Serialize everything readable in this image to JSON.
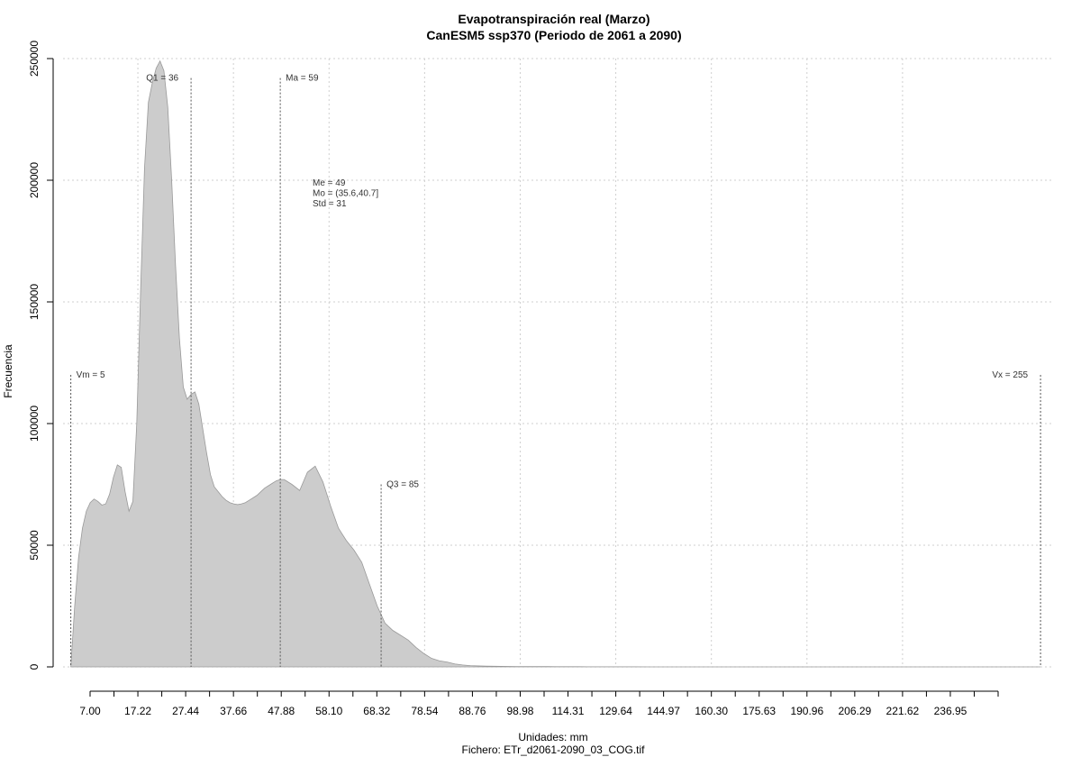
{
  "chart_data": {
    "type": "area",
    "title": "Evapotranspiración real (Marzo)",
    "subtitle": "CanESM5 ssp370 (Periodo de 2061 a 2090)",
    "xlabel": "Unidades: mm",
    "ylabel": "Frecuencia",
    "footer": "Fichero: ETr_d2061-2090_03_COG.tif",
    "xlim": [
      3,
      258
    ],
    "ylim": [
      0,
      250000
    ],
    "y_ticks": [
      0,
      50000,
      100000,
      150000,
      200000,
      250000
    ],
    "y_tick_labels": [
      "0",
      "50000",
      "100000",
      "150000",
      "200000",
      "250000"
    ],
    "x_tick_labels": [
      "7.00",
      "17.22",
      "27.44",
      "37.66",
      "47.88",
      "58.10",
      "68.32",
      "78.54",
      "88.76",
      "98.98",
      "114.31",
      "129.64",
      "144.97",
      "160.30",
      "175.63",
      "190.96",
      "206.29",
      "221.62",
      "236.95"
    ],
    "grid": true,
    "fill_color": "#cccccc",
    "series": [
      {
        "x": [
          5,
          6,
          7,
          8,
          9,
          10,
          11,
          12,
          13,
          14,
          15,
          16,
          17,
          18,
          19,
          20,
          21,
          22,
          23,
          24,
          25,
          26,
          27,
          28,
          29,
          30,
          31,
          32,
          33,
          34,
          35,
          36,
          37,
          38,
          39,
          40,
          41,
          42,
          43,
          44,
          45,
          46,
          47,
          48,
          49,
          50,
          51,
          52,
          53,
          54,
          55,
          56,
          57,
          58,
          59,
          60,
          62,
          64,
          66,
          68,
          70,
          72,
          74,
          76,
          78,
          80,
          82,
          84,
          86,
          88,
          90,
          92,
          94,
          96,
          98,
          100,
          102,
          104,
          106,
          108,
          110,
          112,
          114,
          116,
          118,
          120,
          122,
          124,
          126,
          128,
          130,
          132,
          134,
          136,
          138,
          140,
          142,
          144,
          146,
          150,
          155,
          160,
          170,
          180,
          200,
          220,
          240,
          255
        ],
        "y": [
          0,
          25000,
          45000,
          57000,
          64000,
          67500,
          69000,
          68000,
          66500,
          67000,
          71000,
          78000,
          83000,
          82000,
          72000,
          64000,
          68000,
          100000,
          155000,
          205000,
          232000,
          240000,
          246000,
          249000,
          245000,
          230000,
          200000,
          165000,
          135000,
          115000,
          110000,
          112000,
          113000,
          108000,
          98000,
          88000,
          79000,
          74000,
          72000,
          70000,
          68500,
          67500,
          67000,
          66700,
          67000,
          67500,
          68500,
          69500,
          70500,
          72000,
          73500,
          74500,
          75500,
          76500,
          77000,
          77000,
          75000,
          72500,
          80000,
          82500,
          76000,
          66000,
          57000,
          52000,
          48000,
          43000,
          34000,
          25000,
          18000,
          15000,
          13000,
          11000,
          8000,
          5500,
          3500,
          2500,
          2000,
          1200,
          800,
          500,
          400,
          300,
          250,
          200,
          180,
          150,
          140,
          130,
          120,
          110,
          100,
          90,
          80,
          70,
          60,
          50,
          40,
          30,
          20,
          15,
          10,
          8,
          5,
          3,
          2,
          1,
          0,
          0
        ],
        "color": "#cccccc"
      }
    ],
    "annotations": [
      {
        "label": "Vm = 5",
        "x": 5,
        "y_top": 120000,
        "label_side": "right"
      },
      {
        "label": "Q1 = 36",
        "x": 36,
        "y_top": 242000,
        "label_side": "left"
      },
      {
        "label": "Ma = 59",
        "x": 59,
        "y_top": 242000,
        "label_side": "right"
      },
      {
        "label": "Q3 = 85",
        "x": 85,
        "y_top": 75000,
        "label_side": "right"
      },
      {
        "label": "Vx = 255",
        "x": 255,
        "y_top": 120000,
        "label_side": "left"
      }
    ],
    "stats_text": [
      "Me = 49",
      "Mo = (35.6,40.7]",
      "Std = 31"
    ]
  }
}
